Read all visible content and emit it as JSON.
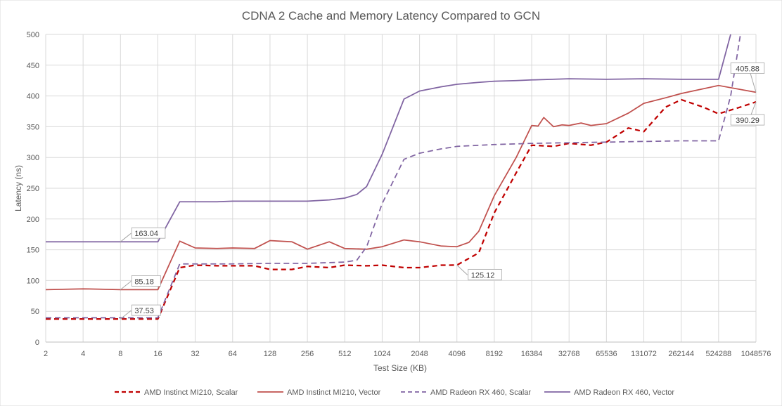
{
  "chart_data": {
    "type": "line",
    "title": "CDNA 2 Cache and Memory Latency Compared to GCN",
    "xlabel": "Test Size (KB)",
    "ylabel": "Latency (ns)",
    "x_scale": "log2",
    "ylim": [
      0,
      500
    ],
    "y_ticks": [
      "0",
      "50",
      "100",
      "150",
      "200",
      "250",
      "300",
      "350",
      "400",
      "450",
      "500"
    ],
    "x_ticks": [
      "2",
      "4",
      "8",
      "16",
      "32",
      "64",
      "128",
      "256",
      "512",
      "1024",
      "2048",
      "4096",
      "8192",
      "16384",
      "32768",
      "65536",
      "131072",
      "262144",
      "524288",
      "1048576"
    ],
    "grid": true,
    "legend_position": "bottom",
    "series": [
      {
        "name": "AMD Instinct MI210, Scalar",
        "color": "#c00000",
        "style": "dashed",
        "points": [
          [
            2,
            37.53
          ],
          [
            4,
            37.6
          ],
          [
            8,
            37.53
          ],
          [
            16,
            37.6
          ],
          [
            24,
            121
          ],
          [
            32,
            125
          ],
          [
            48,
            124
          ],
          [
            64,
            124
          ],
          [
            96,
            124
          ],
          [
            128,
            118
          ],
          [
            192,
            118
          ],
          [
            256,
            123
          ],
          [
            384,
            121
          ],
          [
            512,
            125
          ],
          [
            768,
            124
          ],
          [
            1024,
            125
          ],
          [
            1536,
            121
          ],
          [
            2048,
            121
          ],
          [
            3072,
            125
          ],
          [
            4096,
            125.12
          ],
          [
            6144,
            145
          ],
          [
            8192,
            210
          ],
          [
            12288,
            275
          ],
          [
            16384,
            320
          ],
          [
            24576,
            318
          ],
          [
            32768,
            323
          ],
          [
            49152,
            320
          ],
          [
            65536,
            325
          ],
          [
            98304,
            348
          ],
          [
            131072,
            342
          ],
          [
            196608,
            382
          ],
          [
            262144,
            394
          ],
          [
            393216,
            382
          ],
          [
            524288,
            371
          ],
          [
            786432,
            382
          ],
          [
            1048576,
            390.29
          ]
        ]
      },
      {
        "name": "AMD Instinct MI210, Vector",
        "color": "#c0504d",
        "style": "solid",
        "points": [
          [
            2,
            85.18
          ],
          [
            4,
            86.5
          ],
          [
            8,
            85.18
          ],
          [
            16,
            85.18
          ],
          [
            24,
            164
          ],
          [
            32,
            153
          ],
          [
            48,
            152
          ],
          [
            64,
            153
          ],
          [
            96,
            152
          ],
          [
            128,
            165
          ],
          [
            192,
            163
          ],
          [
            256,
            151
          ],
          [
            384,
            163
          ],
          [
            512,
            152
          ],
          [
            768,
            151
          ],
          [
            1024,
            155
          ],
          [
            1536,
            166
          ],
          [
            2048,
            163
          ],
          [
            3072,
            156
          ],
          [
            4096,
            155
          ],
          [
            5120,
            162
          ],
          [
            6144,
            180
          ],
          [
            8192,
            238
          ],
          [
            12288,
            300
          ],
          [
            16384,
            352
          ],
          [
            18432,
            351
          ],
          [
            20480,
            365
          ],
          [
            24576,
            350
          ],
          [
            28672,
            353
          ],
          [
            32768,
            352
          ],
          [
            40960,
            356
          ],
          [
            49152,
            352
          ],
          [
            65536,
            355
          ],
          [
            98304,
            372
          ],
          [
            131072,
            388
          ],
          [
            196608,
            397
          ],
          [
            262144,
            404
          ],
          [
            524288,
            417
          ],
          [
            1048576,
            405.88
          ]
        ]
      },
      {
        "name": "AMD Radeon RX 460, Scalar",
        "color": "#8064a2",
        "style": "dashed",
        "points": [
          [
            2,
            39.5
          ],
          [
            4,
            39.5
          ],
          [
            8,
            39.5
          ],
          [
            16,
            39.5
          ],
          [
            24,
            127
          ],
          [
            32,
            127
          ],
          [
            64,
            127
          ],
          [
            128,
            128
          ],
          [
            256,
            128
          ],
          [
            512,
            130
          ],
          [
            640,
            133
          ],
          [
            768,
            155
          ],
          [
            1024,
            225
          ],
          [
            1536,
            297
          ],
          [
            2048,
            307
          ],
          [
            3072,
            314
          ],
          [
            4096,
            318
          ],
          [
            8192,
            321
          ],
          [
            16384,
            323
          ],
          [
            32768,
            324
          ],
          [
            65536,
            325
          ],
          [
            131072,
            326
          ],
          [
            262144,
            327
          ],
          [
            524288,
            327
          ],
          [
            655360,
            400
          ],
          [
            786432,
            500
          ]
        ]
      },
      {
        "name": "AMD Radeon RX 460, Vector",
        "color": "#8064a2",
        "style": "solid",
        "points": [
          [
            2,
            163.04
          ],
          [
            4,
            163.04
          ],
          [
            8,
            163.04
          ],
          [
            16,
            163.04
          ],
          [
            24,
            228
          ],
          [
            32,
            228
          ],
          [
            48,
            228
          ],
          [
            64,
            229
          ],
          [
            128,
            229
          ],
          [
            256,
            229
          ],
          [
            384,
            231
          ],
          [
            512,
            234
          ],
          [
            640,
            240
          ],
          [
            768,
            253
          ],
          [
            1024,
            305
          ],
          [
            1536,
            395
          ],
          [
            2048,
            408
          ],
          [
            3072,
            415
          ],
          [
            4096,
            419
          ],
          [
            6144,
            422
          ],
          [
            8192,
            424
          ],
          [
            12288,
            425
          ],
          [
            16384,
            426
          ],
          [
            32768,
            428
          ],
          [
            65536,
            427
          ],
          [
            131072,
            428
          ],
          [
            262144,
            427
          ],
          [
            524288,
            427
          ],
          [
            655360,
            500
          ]
        ]
      }
    ],
    "annotations": [
      {
        "label": "163.04",
        "series": 3,
        "x": 8,
        "y": 163.04
      },
      {
        "label": "85.18",
        "series": 1,
        "x": 8,
        "y": 85.18
      },
      {
        "label": "37.53",
        "series": 0,
        "x": 8,
        "y": 37.53
      },
      {
        "label": "125.12",
        "series": 0,
        "x": 4096,
        "y": 125.12
      },
      {
        "label": "405.88",
        "series": 1,
        "x": 1048576,
        "y": 405.88
      },
      {
        "label": "390.29",
        "series": 0,
        "x": 1048576,
        "y": 390.29
      }
    ]
  }
}
